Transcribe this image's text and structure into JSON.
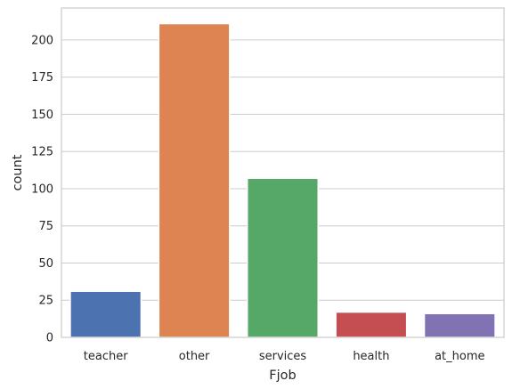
{
  "chart_data": {
    "type": "bar",
    "categories": [
      "teacher",
      "other",
      "services",
      "health",
      "at_home"
    ],
    "values": [
      31,
      211,
      107,
      17,
      16
    ],
    "title": "",
    "xlabel": "Fjob",
    "ylabel": "count",
    "ylim": [
      0,
      221.5
    ],
    "yticks": [
      "0",
      "25",
      "50",
      "75",
      "100",
      "125",
      "150",
      "175",
      "200"
    ],
    "grid": true,
    "colors": [
      "#4c72b0",
      "#dd8452",
      "#55a868",
      "#c44e52",
      "#8172b3"
    ]
  }
}
